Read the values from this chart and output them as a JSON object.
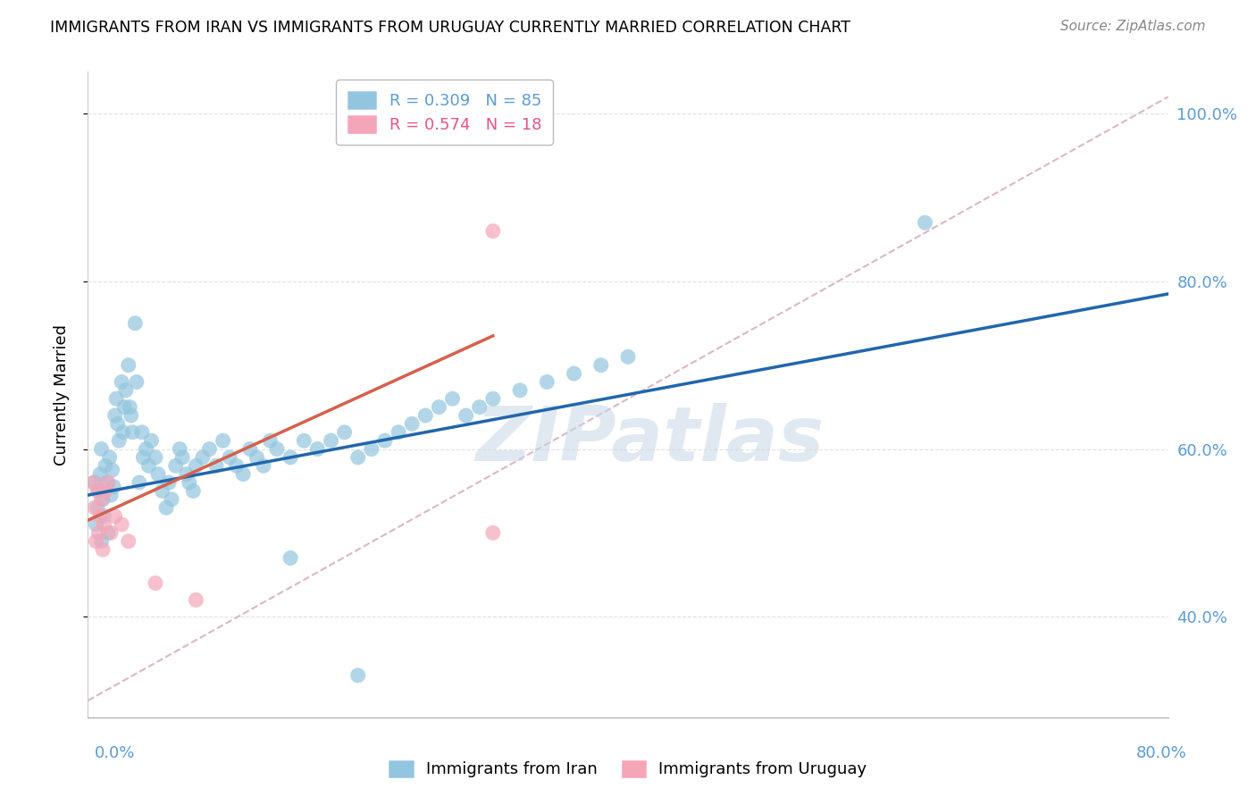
{
  "title": "IMMIGRANTS FROM IRAN VS IMMIGRANTS FROM URUGUAY CURRENTLY MARRIED CORRELATION CHART",
  "source": "Source: ZipAtlas.com",
  "ylabel": "Currently Married",
  "color_iran": "#92c5de",
  "color_uruguay": "#f4a6b8",
  "color_iran_line": "#2166ac",
  "color_uruguay_line": "#d6604d",
  "color_ref_line": "#d9b8c4",
  "xlim": [
    0.0,
    0.8
  ],
  "ylim": [
    0.28,
    1.05
  ],
  "yticks": [
    0.4,
    0.6,
    0.8,
    1.0
  ],
  "ytick_labels": [
    "40.0%",
    "60.0%",
    "80.0%",
    "100.0%"
  ],
  "watermark_text": "ZIPatlas",
  "background_color": "#ffffff",
  "grid_color": "#e0e0e0",
  "iran_line_x": [
    0.0,
    0.8
  ],
  "iran_line_y": [
    0.545,
    0.785
  ],
  "uruguay_line_x": [
    0.0,
    0.3
  ],
  "uruguay_line_y": [
    0.515,
    0.735
  ],
  "ref_line_x": [
    0.0,
    0.8
  ],
  "ref_line_y": [
    0.3,
    1.02
  ],
  "iran_x": [
    0.005,
    0.006,
    0.007,
    0.008,
    0.009,
    0.01,
    0.01,
    0.011,
    0.012,
    0.013,
    0.014,
    0.015,
    0.016,
    0.017,
    0.018,
    0.019,
    0.02,
    0.021,
    0.022,
    0.023,
    0.025,
    0.026,
    0.027,
    0.028,
    0.03,
    0.031,
    0.032,
    0.033,
    0.035,
    0.036,
    0.038,
    0.04,
    0.041,
    0.043,
    0.045,
    0.047,
    0.05,
    0.052,
    0.055,
    0.058,
    0.06,
    0.062,
    0.065,
    0.068,
    0.07,
    0.073,
    0.075,
    0.078,
    0.08,
    0.085,
    0.09,
    0.095,
    0.1,
    0.105,
    0.11,
    0.115,
    0.12,
    0.125,
    0.13,
    0.135,
    0.14,
    0.15,
    0.16,
    0.17,
    0.18,
    0.19,
    0.2,
    0.21,
    0.22,
    0.23,
    0.24,
    0.25,
    0.26,
    0.27,
    0.28,
    0.29,
    0.3,
    0.32,
    0.34,
    0.36,
    0.38,
    0.4,
    0.62,
    0.2,
    0.15
  ],
  "iran_y": [
    0.56,
    0.51,
    0.53,
    0.55,
    0.57,
    0.49,
    0.6,
    0.54,
    0.52,
    0.58,
    0.56,
    0.5,
    0.59,
    0.545,
    0.575,
    0.555,
    0.64,
    0.66,
    0.63,
    0.61,
    0.68,
    0.62,
    0.65,
    0.67,
    0.7,
    0.65,
    0.64,
    0.62,
    0.75,
    0.68,
    0.56,
    0.62,
    0.59,
    0.6,
    0.58,
    0.61,
    0.59,
    0.57,
    0.55,
    0.53,
    0.56,
    0.54,
    0.58,
    0.6,
    0.59,
    0.57,
    0.56,
    0.55,
    0.58,
    0.59,
    0.6,
    0.58,
    0.61,
    0.59,
    0.58,
    0.57,
    0.6,
    0.59,
    0.58,
    0.61,
    0.6,
    0.59,
    0.61,
    0.6,
    0.61,
    0.62,
    0.59,
    0.6,
    0.61,
    0.62,
    0.63,
    0.64,
    0.65,
    0.66,
    0.64,
    0.65,
    0.66,
    0.67,
    0.68,
    0.69,
    0.7,
    0.71,
    0.87,
    0.33,
    0.47
  ],
  "uruguay_x": [
    0.004,
    0.005,
    0.006,
    0.007,
    0.008,
    0.009,
    0.01,
    0.011,
    0.012,
    0.013,
    0.015,
    0.017,
    0.02,
    0.025,
    0.03,
    0.05,
    0.08,
    0.3
  ],
  "uruguay_y": [
    0.56,
    0.53,
    0.49,
    0.55,
    0.5,
    0.52,
    0.54,
    0.48,
    0.51,
    0.55,
    0.56,
    0.5,
    0.52,
    0.51,
    0.49,
    0.44,
    0.42,
    0.5
  ],
  "uruguay_outlier_x": [
    0.3
  ],
  "uruguay_outlier_y": [
    0.86
  ],
  "legend_iran_color": "#5b9bd5",
  "legend_uruguay_color": "#e75480",
  "legend_iran_text": "R = 0.309   N = 85",
  "legend_uruguay_text": "R = 0.574   N = 18"
}
